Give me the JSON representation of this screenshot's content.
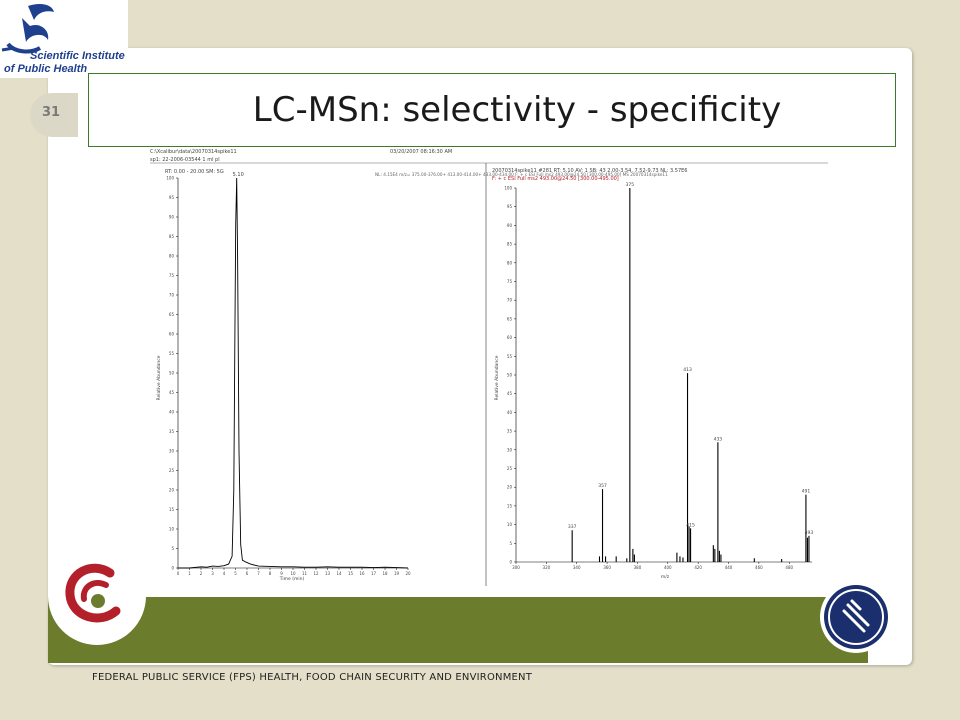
{
  "slide": {
    "number": "31",
    "title": "LC-MSn: selectivity - specificity",
    "footer": "FEDERAL PUBLIC SERVICE (FPS) HEALTH, FOOD CHAIN SECURITY AND ENVIRONMENT"
  },
  "logo": {
    "line1": "Scientific Institute",
    "line2": "of Public Health"
  },
  "colors": {
    "background": "#e4dfc9",
    "band_green": "#6b7d2c",
    "title_border": "#3c7a2a",
    "logo_blue": "#1f3f8f",
    "badge_navy": "#1b2f6e",
    "swirl_red": "#b3202a",
    "swirl_green": "#6b7d2c"
  },
  "figure": {
    "header_left": "C:\\Xcalibur\\data\\20070314spike11",
    "header_right": "03/20/2007 08:16:30 AM",
    "header_left_2": "sp1: 22-2006-03544 1 ml pl",
    "left_panel_header": "RT: 0.00 - 20.00   SM: 5G",
    "right_panel_header": "20070314spike11 #281  RT: 5.10  AV: 1  SB: 43  2.00-3.54, 7.52-9.73  NL: 3.57E6",
    "right_panel_header_2": "F: + c ESI Full ms2 493.00@24.50 [300.00-495.00]"
  },
  "chart_data": [
    {
      "type": "line",
      "title": "",
      "xlabel": "Time (min)",
      "ylabel": "Relative Abundance",
      "xlim": [
        0,
        20
      ],
      "ylim": [
        0,
        100
      ],
      "x_ticks": [
        0,
        1,
        2,
        3,
        4,
        5,
        6,
        7,
        8,
        9,
        10,
        11,
        12,
        13,
        14,
        15,
        16,
        17,
        18,
        19,
        20
      ],
      "y_ticks": [
        0,
        5,
        10,
        15,
        20,
        25,
        30,
        35,
        40,
        45,
        50,
        55,
        60,
        65,
        70,
        75,
        80,
        85,
        90,
        95,
        100
      ],
      "peak_label": "5.10",
      "annotation": "NL: 4.15E4 m/z= 375.00-376.00+ 413.00-414.00+ 433.00-434.00 F: + c ESI Full ms2 493.00@24.50 [300.00-495.00] MS 20070314spike11",
      "series": [
        {
          "x": [
            0,
            1,
            2,
            2.5,
            3,
            3.5,
            4,
            4.4,
            4.7,
            4.85,
            4.95,
            5.02,
            5.1,
            5.18,
            5.3,
            5.45,
            5.6,
            5.9,
            6.3,
            7,
            8,
            9,
            10,
            11,
            12,
            13,
            14,
            15,
            16,
            17,
            18,
            19,
            20
          ],
          "y": [
            0,
            0,
            0.3,
            0.2,
            0.5,
            0.4,
            0.6,
            1,
            3,
            20,
            60,
            88,
            100,
            80,
            30,
            6,
            2,
            1.5,
            1,
            0.5,
            0.4,
            0.3,
            0.3,
            0.2,
            0.2,
            0.3,
            0.2,
            0.2,
            0.2,
            0.1,
            0.2,
            0.1,
            0
          ]
        }
      ]
    },
    {
      "type": "bar",
      "title": "",
      "xlabel": "m/z",
      "ylabel": "Relative Abundance",
      "xlim": [
        300,
        495
      ],
      "ylim": [
        0,
        100
      ],
      "x_ticks": [
        300,
        320,
        340,
        360,
        380,
        400,
        420,
        440,
        460,
        480
      ],
      "y_ticks": [
        0,
        5,
        10,
        15,
        20,
        25,
        30,
        35,
        40,
        45,
        50,
        55,
        60,
        65,
        70,
        75,
        80,
        85,
        90,
        95,
        100
      ],
      "peaks": [
        {
          "mz": 337,
          "value": 8.5,
          "label": "337"
        },
        {
          "mz": 355,
          "value": 1.5,
          "label": ""
        },
        {
          "mz": 357,
          "value": 19.5,
          "label": "357"
        },
        {
          "mz": 359,
          "value": 1.5,
          "label": ""
        },
        {
          "mz": 366,
          "value": 1.5,
          "label": ""
        },
        {
          "mz": 373,
          "value": 1,
          "label": ""
        },
        {
          "mz": 375,
          "value": 100,
          "label": "375"
        },
        {
          "mz": 377,
          "value": 3.5,
          "label": ""
        },
        {
          "mz": 378,
          "value": 2,
          "label": ""
        },
        {
          "mz": 406,
          "value": 2.5,
          "label": ""
        },
        {
          "mz": 408,
          "value": 1.5,
          "label": ""
        },
        {
          "mz": 410,
          "value": 1.2,
          "label": ""
        },
        {
          "mz": 413,
          "value": 50.5,
          "label": "413"
        },
        {
          "mz": 414,
          "value": 9.5,
          "label": ""
        },
        {
          "mz": 415,
          "value": 9,
          "label": "415"
        },
        {
          "mz": 430,
          "value": 4.5,
          "label": ""
        },
        {
          "mz": 431,
          "value": 3.5,
          "label": ""
        },
        {
          "mz": 433,
          "value": 32,
          "label": "433"
        },
        {
          "mz": 434,
          "value": 3,
          "label": ""
        },
        {
          "mz": 435,
          "value": 2,
          "label": ""
        },
        {
          "mz": 457,
          "value": 1,
          "label": ""
        },
        {
          "mz": 475,
          "value": 0.8,
          "label": ""
        },
        {
          "mz": 491,
          "value": 18,
          "label": "491"
        },
        {
          "mz": 492,
          "value": 6.5,
          "label": ""
        },
        {
          "mz": 493,
          "value": 7,
          "label": "493"
        }
      ]
    }
  ]
}
